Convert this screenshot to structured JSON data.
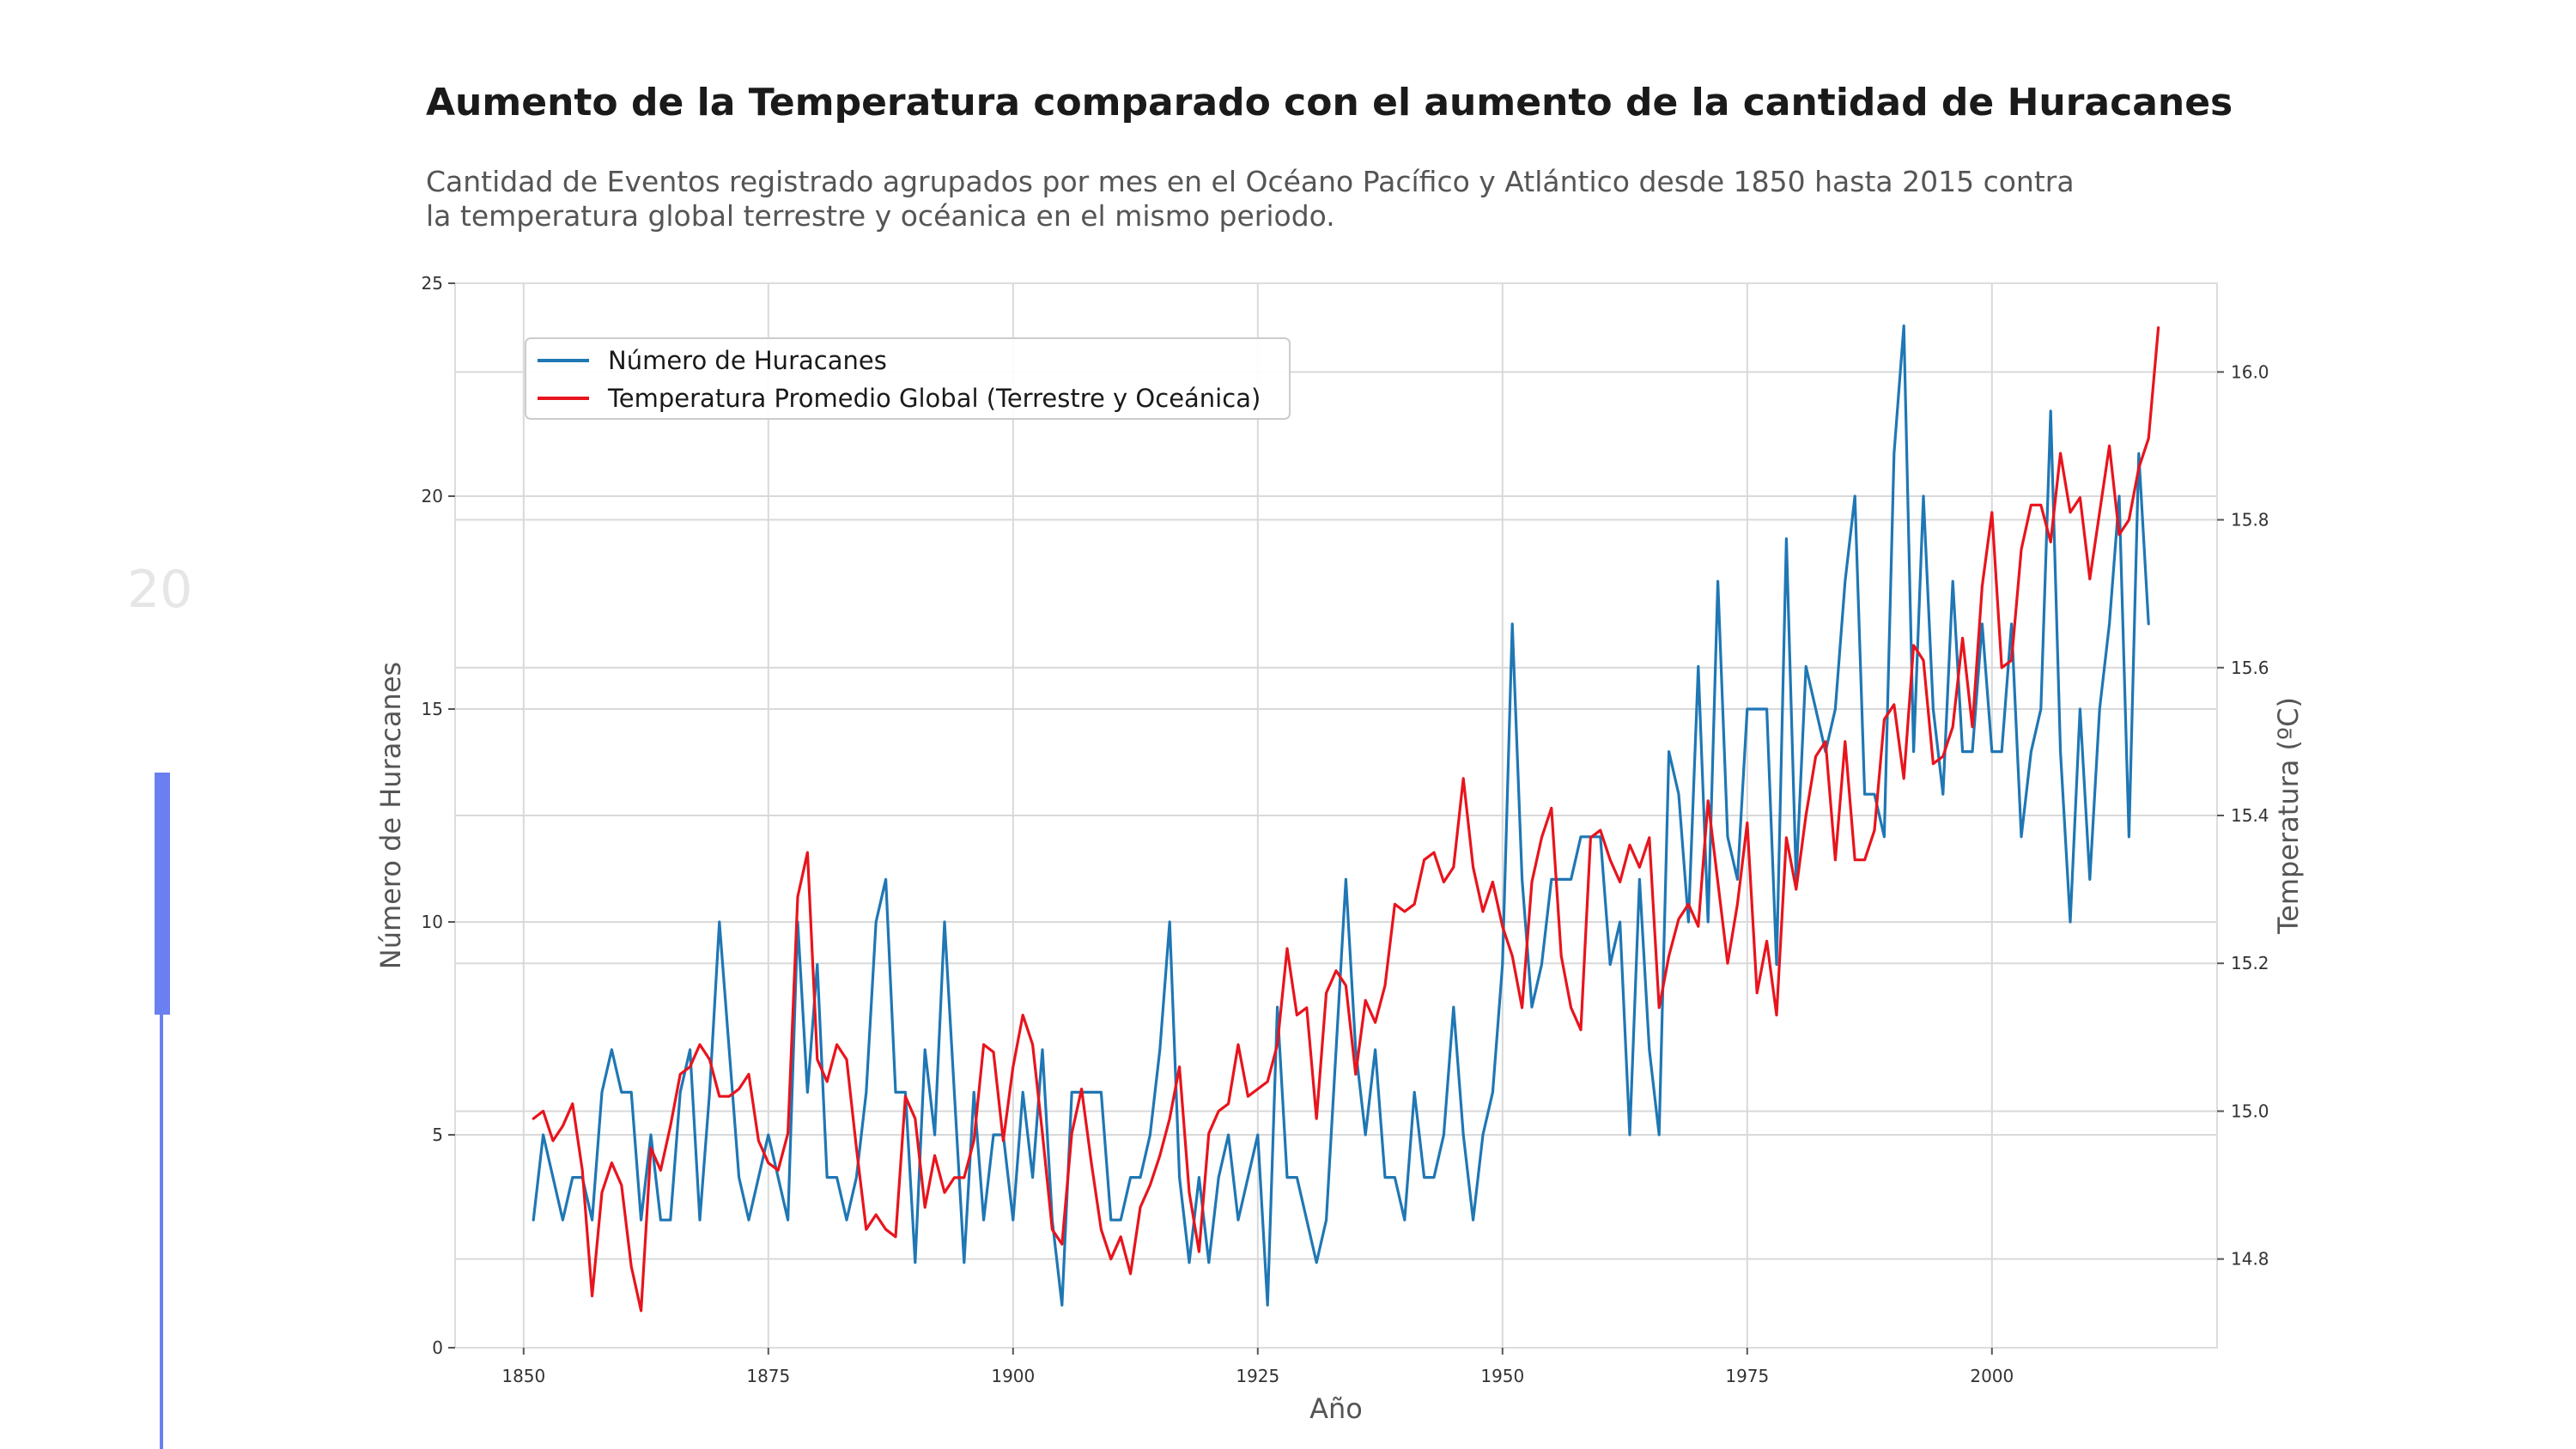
{
  "slide": {
    "number": "20",
    "accent_color": "#6b7ff0"
  },
  "chart_data": {
    "type": "line",
    "title": "Aumento de la Temperatura comparado con el aumento de la cantidad de Huracanes",
    "subtitle_lines": [
      "Cantidad de Eventos registrado agrupados por mes en el Océano Pacífico y Atlántico desde 1850 hasta 2015 contra",
      "la temperatura global terrestre y océanica en el mismo periodo."
    ],
    "xlabel": "Año",
    "ylabel": "Número de Huracanes",
    "ylabel_right": "Temperatura (ºC)",
    "xlim": [
      1843,
      2023
    ],
    "ylim": [
      0,
      25
    ],
    "ylim_right": [
      14.68,
      16.12
    ],
    "x_ticks": [
      1850,
      1875,
      1900,
      1925,
      1950,
      1975,
      2000
    ],
    "y_ticks": [
      0,
      5,
      10,
      15,
      20,
      25
    ],
    "y_ticks_right": [
      14.8,
      15.0,
      15.2,
      15.4,
      15.6,
      15.8,
      16.0
    ],
    "grid": true,
    "legend_position": "top-left",
    "start_year": 1851,
    "series": [
      {
        "name": "Número de Huracanes",
        "axis": "left",
        "color": "#1f77b4",
        "values": [
          3,
          5,
          4,
          3,
          4,
          4,
          3,
          6,
          7,
          6,
          6,
          3,
          5,
          3,
          3,
          6,
          7,
          3,
          6,
          10,
          7,
          4,
          3,
          4,
          5,
          4,
          3,
          10,
          6,
          9,
          4,
          4,
          3,
          4,
          6,
          10,
          11,
          6,
          6,
          2,
          7,
          5,
          10,
          6,
          2,
          6,
          3,
          5,
          5,
          3,
          6,
          4,
          7,
          3,
          1,
          6,
          6,
          6,
          6,
          3,
          3,
          4,
          4,
          5,
          7,
          10,
          4,
          2,
          4,
          2,
          4,
          5,
          3,
          4,
          5,
          1,
          8,
          4,
          4,
          3,
          2,
          3,
          7,
          11,
          7,
          5,
          7,
          4,
          4,
          3,
          6,
          4,
          4,
          5,
          8,
          5,
          3,
          5,
          6,
          9,
          17,
          11,
          8,
          9,
          11,
          11,
          11,
          12,
          12,
          12,
          9,
          10,
          5,
          11,
          7,
          5,
          14,
          13,
          10,
          16,
          10,
          18,
          12,
          11,
          15,
          15,
          15,
          9,
          19,
          11,
          16,
          15,
          14,
          15,
          18,
          20,
          13,
          13,
          12,
          21,
          24,
          14,
          20,
          15,
          13,
          18,
          14,
          14,
          17,
          14,
          14,
          17,
          12,
          14,
          15,
          22,
          14,
          10,
          15,
          11,
          15,
          17,
          20,
          12,
          21,
          17
        ],
        "values_note": "one value per year from start_year"
      },
      {
        "name": "Temperatura Promedio Global (Terrestre y Oceánica)",
        "axis": "right",
        "color": "#e8141d",
        "values": [
          14.99,
          15.0,
          14.96,
          14.98,
          15.01,
          14.92,
          14.75,
          14.89,
          14.93,
          14.9,
          14.79,
          14.73,
          14.95,
          14.92,
          14.98,
          15.05,
          15.06,
          15.09,
          15.07,
          15.02,
          15.02,
          15.03,
          15.05,
          14.96,
          14.93,
          14.92,
          14.97,
          15.29,
          15.35,
          15.07,
          15.04,
          15.09,
          15.07,
          14.95,
          14.84,
          14.86,
          14.84,
          14.83,
          15.02,
          14.99,
          14.87,
          14.94,
          14.89,
          14.91,
          14.91,
          14.96,
          15.09,
          15.08,
          14.96,
          15.06,
          15.13,
          15.09,
          14.97,
          14.84,
          14.82,
          14.97,
          15.03,
          14.93,
          14.84,
          14.8,
          14.83,
          14.78,
          14.87,
          14.9,
          14.94,
          14.99,
          15.06,
          14.89,
          14.81,
          14.97,
          15.0,
          15.01,
          15.09,
          15.02,
          15.03,
          15.04,
          15.09,
          15.22,
          15.13,
          15.14,
          14.99,
          15.16,
          15.19,
          15.17,
          15.05,
          15.15,
          15.12,
          15.17,
          15.28,
          15.27,
          15.28,
          15.34,
          15.35,
          15.31,
          15.33,
          15.45,
          15.33,
          15.27,
          15.31,
          15.25,
          15.21,
          15.14,
          15.31,
          15.37,
          15.41,
          15.21,
          15.14,
          15.11,
          15.37,
          15.38,
          15.34,
          15.31,
          15.36,
          15.33,
          15.37,
          15.14,
          15.21,
          15.26,
          15.28,
          15.25,
          15.42,
          15.31,
          15.2,
          15.28,
          15.39,
          15.16,
          15.23,
          15.13,
          15.37,
          15.3,
          15.4,
          15.48,
          15.5,
          15.34,
          15.5,
          15.34,
          15.34,
          15.38,
          15.53,
          15.55,
          15.45,
          15.63,
          15.61,
          15.47,
          15.48,
          15.52,
          15.64,
          15.52,
          15.71,
          15.81,
          15.6,
          15.61,
          15.76,
          15.82,
          15.82,
          15.77,
          15.89,
          15.81,
          15.83,
          15.72,
          15.81,
          15.9,
          15.78,
          15.8,
          15.87,
          15.91,
          16.06
        ],
        "values_note": "one value per year from start_year"
      }
    ]
  }
}
